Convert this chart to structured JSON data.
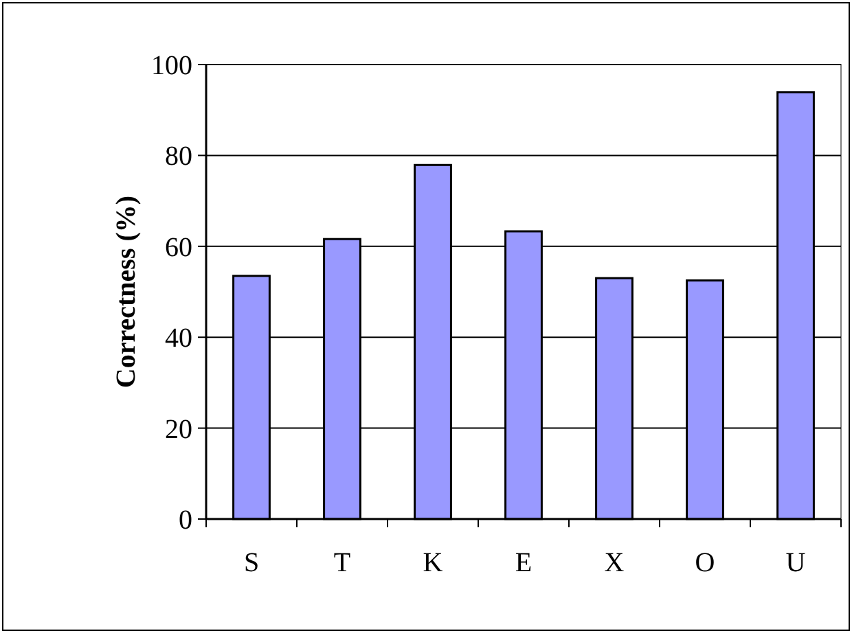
{
  "chart_data": {
    "type": "bar",
    "ylabel": "Correctness (%)",
    "categories": [
      "S",
      "T",
      "K",
      "E",
      "X",
      "O",
      "U"
    ],
    "values": [
      53.5,
      61.6,
      77.9,
      63.3,
      53,
      52.5,
      93.9
    ],
    "color": "#9999ff",
    "ylim": [
      0,
      100
    ],
    "yticks": [
      0,
      20,
      40,
      60,
      80,
      100
    ],
    "grid": "y"
  }
}
